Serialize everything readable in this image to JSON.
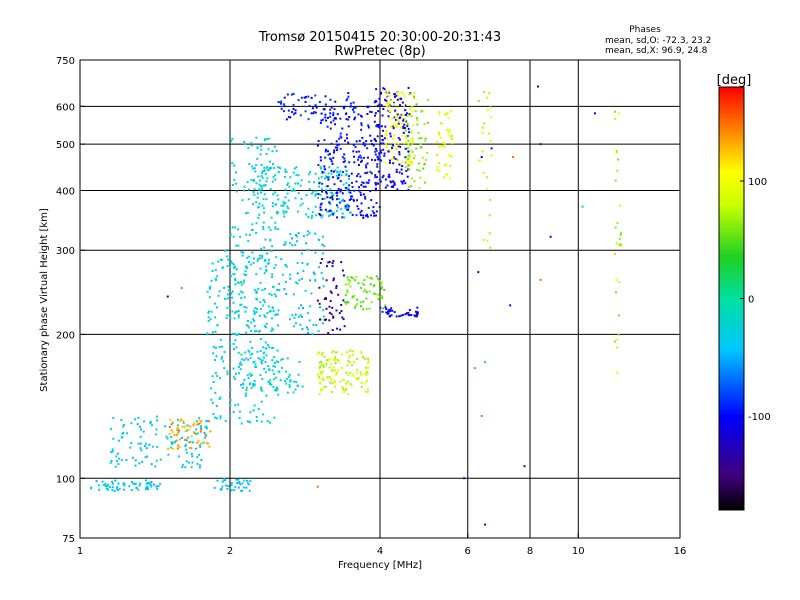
{
  "chart_data": {
    "type": "scatter",
    "title": "Tromsø 20150415 20:30:00-20:31:43",
    "subtitle": "RwPretec (8p)",
    "xlabel": "Frequency [MHz]",
    "ylabel": "Stationary phase Virtual Height [km]",
    "x_scale": "log",
    "y_scale": "log",
    "xlim": [
      1,
      16
    ],
    "ylim": [
      75,
      750
    ],
    "xticks": [
      "1",
      "2",
      "4",
      "6",
      "8",
      "10",
      "16"
    ],
    "xtick_values": [
      1,
      2,
      4,
      6,
      8,
      10,
      16
    ],
    "yticks": [
      "75",
      "100",
      "200",
      "300",
      "400",
      "500",
      "600",
      "750"
    ],
    "ytick_values": [
      75,
      100,
      200,
      300,
      400,
      500,
      600,
      750
    ],
    "grid": true,
    "phase_stats": {
      "header": "Phases",
      "o_line": "mean, sd,O: -72.3, 23.2",
      "x_line": "mean, sd,X:  96.9, 24.8"
    },
    "colorbar": {
      "label": "[deg]",
      "ticks": [
        "100",
        "0",
        "-100"
      ],
      "tick_values": [
        100,
        0,
        -100
      ],
      "range": [
        -180,
        180
      ]
    },
    "clusters": [
      {
        "f": [
          1.05,
          1.45
        ],
        "h": [
          94,
          99
        ],
        "phase": -40,
        "n": 60
      },
      {
        "f": [
          1.85,
          2.2
        ],
        "h": [
          94,
          100
        ],
        "phase": -40,
        "n": 35
      },
      {
        "f": [
          1.15,
          1.8
        ],
        "h": [
          105,
          135
        ],
        "phase": -35,
        "n": 130
      },
      {
        "f": [
          1.5,
          1.85
        ],
        "h": [
          115,
          135
        ],
        "phase": 135,
        "n": 55
      },
      {
        "f": [
          1.8,
          2.5
        ],
        "h": [
          130,
          300
        ],
        "phase": -30,
        "n": 260
      },
      {
        "f": [
          2.0,
          2.5
        ],
        "h": [
          200,
          520
        ],
        "phase": -25,
        "n": 180
      },
      {
        "f": [
          2.2,
          3.5
        ],
        "h": [
          350,
          450
        ],
        "phase": -25,
        "n": 180
      },
      {
        "f": [
          2.5,
          3.1
        ],
        "h": [
          200,
          330
        ],
        "phase": -40,
        "n": 90
      },
      {
        "f": [
          2.1,
          2.8
        ],
        "h": [
          150,
          180
        ],
        "phase": -25,
        "n": 70
      },
      {
        "f": [
          2.5,
          3.6
        ],
        "h": [
          560,
          640
        ],
        "phase": -95,
        "n": 70
      },
      {
        "f": [
          3.0,
          4.0
        ],
        "h": [
          350,
          600
        ],
        "phase": -100,
        "n": 260
      },
      {
        "f": [
          3.9,
          4.6
        ],
        "h": [
          400,
          660
        ],
        "phase": -110,
        "n": 160
      },
      {
        "f": [
          4.1,
          4.7
        ],
        "h": [
          450,
          650
        ],
        "phase": 100,
        "n": 90
      },
      {
        "f": [
          4.5,
          5.0
        ],
        "h": [
          400,
          650
        ],
        "phase": 60,
        "n": 60
      },
      {
        "f": [
          5.2,
          5.6
        ],
        "h": [
          420,
          600
        ],
        "phase": 90,
        "n": 45
      },
      {
        "f": [
          3.0,
          3.8
        ],
        "h": [
          150,
          185
        ],
        "phase": 80,
        "n": 130
      },
      {
        "f": [
          3.0,
          3.4
        ],
        "h": [
          200,
          290
        ],
        "phase": -140,
        "n": 50
      },
      {
        "f": [
          3.4,
          4.1
        ],
        "h": [
          225,
          265
        ],
        "phase": 55,
        "n": 70
      },
      {
        "f": [
          4.0,
          4.8
        ],
        "h": [
          218,
          228
        ],
        "phase": -105,
        "n": 40
      },
      {
        "f": [
          6.3,
          6.7
        ],
        "h": [
          300,
          660
        ],
        "phase": 80,
        "n": 25
      },
      {
        "f": [
          11.8,
          12.2
        ],
        "h": [
          160,
          620
        ],
        "phase": 70,
        "n": 28
      }
    ],
    "isolated_points": [
      {
        "f": 6.5,
        "h": 80,
        "phase": -120
      },
      {
        "f": 5.9,
        "h": 100,
        "phase": -120
      },
      {
        "f": 7.8,
        "h": 106,
        "phase": -120
      },
      {
        "f": 6.4,
        "h": 135,
        "phase": 150
      },
      {
        "f": 6.2,
        "h": 170,
        "phase": 150
      },
      {
        "f": 6.5,
        "h": 175,
        "phase": -30
      },
      {
        "f": 8.3,
        "h": 660,
        "phase": -140
      },
      {
        "f": 8.8,
        "h": 320,
        "phase": -100
      },
      {
        "f": 10.2,
        "h": 370,
        "phase": -40
      },
      {
        "f": 8.4,
        "h": 260,
        "phase": 150
      },
      {
        "f": 7.3,
        "h": 230,
        "phase": -100
      },
      {
        "f": 6.3,
        "h": 270,
        "phase": -100
      },
      {
        "f": 10.8,
        "h": 580,
        "phase": -120
      },
      {
        "f": 8.4,
        "h": 500,
        "phase": -120
      },
      {
        "f": 7.4,
        "h": 470,
        "phase": 150
      },
      {
        "f": 6.4,
        "h": 470,
        "phase": -120
      },
      {
        "f": 6.7,
        "h": 490,
        "phase": -120
      },
      {
        "f": 1.6,
        "h": 250,
        "phase": 150
      },
      {
        "f": 1.5,
        "h": 240,
        "phase": -120
      },
      {
        "f": 3.0,
        "h": 96,
        "phase": 150
      }
    ]
  }
}
